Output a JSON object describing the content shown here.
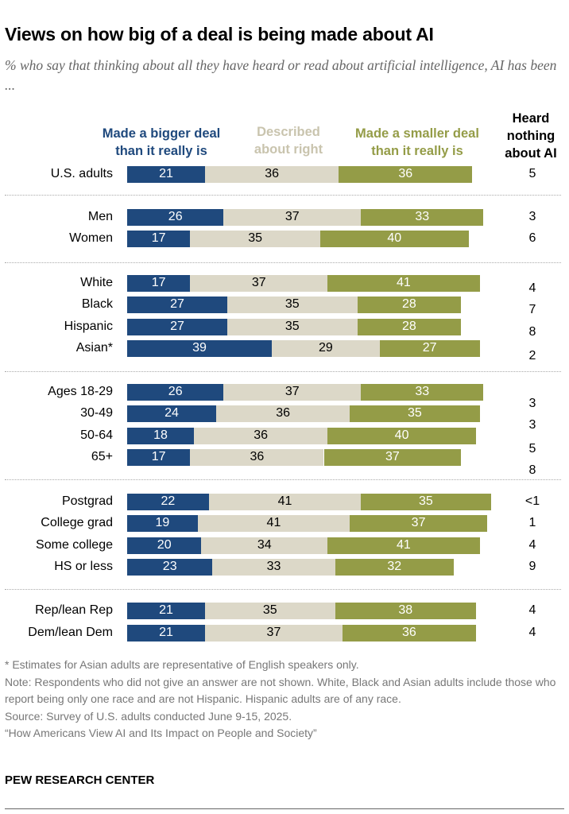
{
  "chart_data": {
    "type": "bar",
    "orientation": "horizontal",
    "stacked": true,
    "title": "Views on how big of a deal is being made about AI",
    "subtitle": "% who say that thinking about all they have heard or read about artificial intelligence, AI has been ...",
    "series": [
      {
        "name": "Made a bigger deal than it really is",
        "color": "#1f497d"
      },
      {
        "name": "Described about right",
        "color": "#dcd8c8"
      },
      {
        "name": "Made a smaller deal than it really is",
        "color": "#949c47"
      }
    ],
    "extra_column": "Heard nothing about AI",
    "groups": [
      {
        "rows": [
          {
            "label": "U.S. adults",
            "values": [
              21,
              36,
              36
            ],
            "heard_nothing": "5"
          }
        ]
      },
      {
        "rows": [
          {
            "label": "Men",
            "values": [
              26,
              37,
              33
            ],
            "heard_nothing": "3"
          },
          {
            "label": "Women",
            "values": [
              17,
              35,
              40
            ],
            "heard_nothing": "6"
          }
        ]
      },
      {
        "rows": [
          {
            "label": "White",
            "values": [
              17,
              37,
              41
            ],
            "heard_nothing": "4"
          },
          {
            "label": "Black",
            "values": [
              27,
              35,
              28
            ],
            "heard_nothing": "7"
          },
          {
            "label": "Hispanic",
            "values": [
              27,
              35,
              28
            ],
            "heard_nothing": "8"
          },
          {
            "label": "Asian*",
            "values": [
              39,
              29,
              27
            ],
            "heard_nothing": "2"
          }
        ]
      },
      {
        "rows": [
          {
            "label": "Ages 18-29",
            "values": [
              26,
              37,
              33
            ],
            "heard_nothing": "3"
          },
          {
            "label": "30-49",
            "values": [
              24,
              36,
              35
            ],
            "heard_nothing": "3"
          },
          {
            "label": "50-64",
            "values": [
              18,
              36,
              40
            ],
            "heard_nothing": "5"
          },
          {
            "label": "65+",
            "values": [
              17,
              36,
              37
            ],
            "heard_nothing": "8"
          }
        ]
      },
      {
        "rows": [
          {
            "label": "Postgrad",
            "values": [
              22,
              41,
              35
            ],
            "heard_nothing": "<1"
          },
          {
            "label": "College grad",
            "values": [
              19,
              41,
              37
            ],
            "heard_nothing": "1"
          },
          {
            "label": "Some college",
            "values": [
              20,
              34,
              41
            ],
            "heard_nothing": "4"
          },
          {
            "label": "HS or less",
            "values": [
              23,
              33,
              32
            ],
            "heard_nothing": "9"
          }
        ]
      },
      {
        "rows": [
          {
            "label": "Rep/lean Rep",
            "values": [
              21,
              35,
              38
            ],
            "heard_nothing": "4"
          },
          {
            "label": "Dem/lean Dem",
            "values": [
              21,
              37,
              36
            ],
            "heard_nothing": "4"
          }
        ]
      }
    ]
  },
  "headers": {
    "bigger": [
      "Made a bigger deal",
      "than it really is"
    ],
    "right": [
      "Described",
      "about right"
    ],
    "smaller": [
      "Made a smaller deal",
      "than it really is"
    ],
    "heard": [
      "Heard",
      "nothing",
      "about AI"
    ]
  },
  "notes": [
    "* Estimates for Asian adults are representative of English speakers only.",
    "Note: Respondents who did not give an answer are not shown. White, Black and Asian adults include those who report being only one race and are not Hispanic. Hispanic adults are of any race.",
    "Source: Survey of U.S. adults conducted June 9-15, 2025.",
    "“How Americans View AI and Its Impact on People and Society”"
  ],
  "brand": "PEW RESEARCH CENTER"
}
